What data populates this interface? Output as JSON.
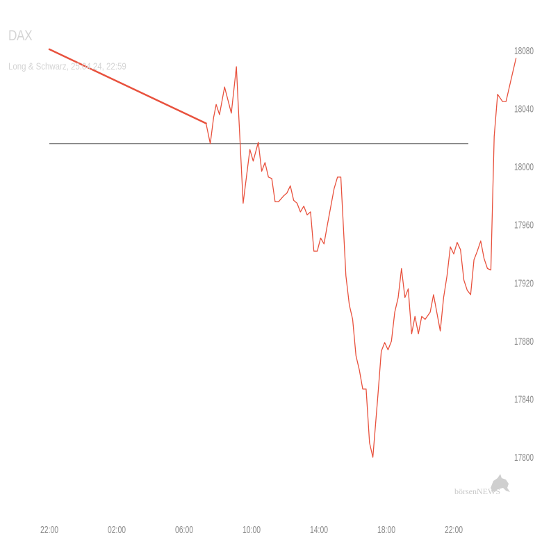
{
  "header": {
    "title": "DAX",
    "subtitle": "Long & Schwarz, 25.04.24, 22:59"
  },
  "logo": {
    "text": "börsenNEWS"
  },
  "colors": {
    "line": "#e8513d",
    "reference": "#555555",
    "tick": "#8a8a8a"
  },
  "chart_data": {
    "type": "line",
    "title": "DAX",
    "subtitle": "Long & Schwarz, 25.04.24, 22:59",
    "xlabel": "",
    "ylabel": "",
    "x_ticks": [
      "22:00",
      "02:00",
      "06:00",
      "10:00",
      "14:00",
      "18:00",
      "22:00"
    ],
    "y_ticks": [
      18080,
      18040,
      18000,
      17960,
      17920,
      17880,
      17840,
      17800
    ],
    "ylim": [
      17783,
      18090
    ],
    "xlim": [
      0,
      26.5
    ],
    "x_unit": "hours since 22:00 (previous day)",
    "reference_line": 18016,
    "grid": false,
    "y_axis_position": "right",
    "series": [
      {
        "values": [
          [
            0,
            18081
          ],
          [
            9.3,
            18030
          ],
          [
            9.55,
            18016
          ],
          [
            9.75,
            18034
          ],
          [
            9.9,
            18043
          ],
          [
            10.1,
            18036
          ],
          [
            10.4,
            18055
          ],
          [
            10.8,
            18037
          ],
          [
            11.1,
            18069
          ],
          [
            11.2,
            18045
          ],
          [
            11.5,
            17975
          ],
          [
            11.9,
            18012
          ],
          [
            12.1,
            18004
          ],
          [
            12.4,
            18017
          ],
          [
            12.6,
            17997
          ],
          [
            12.8,
            18003
          ],
          [
            13.0,
            17993
          ],
          [
            13.2,
            17992
          ],
          [
            13.4,
            17976
          ],
          [
            13.6,
            17976
          ],
          [
            13.9,
            17980
          ],
          [
            14.1,
            17982
          ],
          [
            14.3,
            17987
          ],
          [
            14.5,
            17977
          ],
          [
            14.7,
            17975
          ],
          [
            14.9,
            17969
          ],
          [
            15.1,
            17973
          ],
          [
            15.3,
            17967
          ],
          [
            15.5,
            17969
          ],
          [
            15.7,
            17942
          ],
          [
            15.9,
            17942
          ],
          [
            16.1,
            17951
          ],
          [
            16.3,
            17947
          ],
          [
            16.5,
            17960
          ],
          [
            16.9,
            17985
          ],
          [
            17.1,
            17993
          ],
          [
            17.3,
            17993
          ],
          [
            17.6,
            17925
          ],
          [
            17.8,
            17905
          ],
          [
            18.0,
            17895
          ],
          [
            18.2,
            17870
          ],
          [
            18.4,
            17860
          ],
          [
            18.6,
            17847
          ],
          [
            18.8,
            17847
          ],
          [
            19.0,
            17810
          ],
          [
            19.2,
            17800
          ],
          [
            19.5,
            17843
          ],
          [
            19.7,
            17873
          ],
          [
            19.9,
            17879
          ],
          [
            20.1,
            17874
          ],
          [
            20.3,
            17880
          ],
          [
            20.5,
            17900
          ],
          [
            20.7,
            17910
          ],
          [
            20.9,
            17930
          ],
          [
            21.1,
            17910
          ],
          [
            21.3,
            17916
          ],
          [
            21.5,
            17885
          ],
          [
            21.7,
            17897
          ],
          [
            21.9,
            17885
          ],
          [
            22.1,
            17897
          ],
          [
            22.3,
            17895
          ],
          [
            22.6,
            17900
          ],
          [
            22.8,
            17912
          ],
          [
            23.2,
            17887
          ],
          [
            23.4,
            17910
          ],
          [
            23.6,
            17925
          ],
          [
            23.8,
            17945
          ],
          [
            24.0,
            17940
          ],
          [
            24.2,
            17948
          ],
          [
            24.4,
            17943
          ],
          [
            24.6,
            17922
          ],
          [
            24.8,
            17915
          ],
          [
            25.0,
            17912
          ],
          [
            25.2,
            17936
          ],
          [
            25.4,
            17942
          ],
          [
            25.6,
            17949
          ],
          [
            25.8,
            17937
          ],
          [
            26.0,
            17930
          ],
          [
            26.2,
            17929
          ],
          [
            26.4,
            18021
          ],
          [
            26.6,
            18050
          ],
          [
            26.9,
            18045
          ],
          [
            27.1,
            18045
          ],
          [
            27.4,
            18060
          ],
          [
            27.7,
            18075
          ]
        ]
      }
    ]
  }
}
